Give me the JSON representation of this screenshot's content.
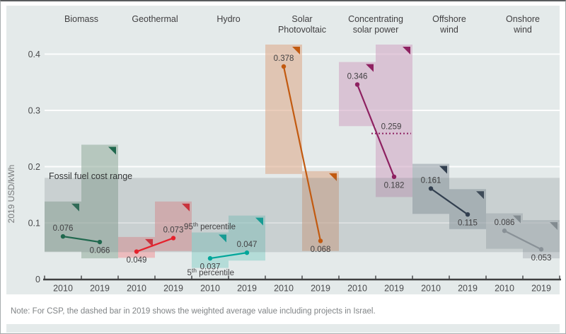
{
  "figure": {
    "y_axis_label": "2019 USD/kWh",
    "fossil_band_label": "Fossil fuel cost range",
    "p95": {
      "base": "95",
      "sup": "th",
      "rest": " percentile"
    },
    "p5": {
      "base": "5",
      "sup": "th",
      "rest": " percentile"
    },
    "note": "Note: For CSP, the dashed bar in 2019 shows the weighted average value including projects in Israel."
  },
  "chart_data": {
    "type": "range-bar",
    "title": "",
    "ylabel": "2019 USD/kWh",
    "unit": "2019 USD/kWh",
    "years": [
      "2010",
      "2019"
    ],
    "y_ticks": [
      "0",
      "0.1",
      "0.2",
      "0.3",
      "0.4"
    ],
    "ylim": [
      0,
      0.44
    ],
    "grid": true,
    "legend_position": "none",
    "range_meaning": "5th to 95th percentile",
    "fossil_fuel_cost_range": {
      "low": 0.048,
      "high": 0.18,
      "label": "Fossil fuel cost range"
    },
    "csp_dashed": {
      "value": 0.259,
      "label": "0.259"
    },
    "technologies": [
      {
        "name": "Biomass",
        "header_lines": [
          "Biomass"
        ],
        "bar_color": "#94ae9f",
        "accent_color": "#20684e",
        "avg": {
          "2010": 0.076,
          "2019": 0.066
        },
        "range": {
          "2010": [
            0.049,
            0.138
          ],
          "2019": [
            0.037,
            0.239
          ]
        },
        "label_side": {
          "2010": "above",
          "2019": "below"
        }
      },
      {
        "name": "Geothermal",
        "header_lines": [
          "Geothermal"
        ],
        "bar_color": "#f0999c",
        "accent_color": "#e5212c",
        "avg": {
          "2010": 0.049,
          "2019": 0.073
        },
        "range": {
          "2010": [
            0.038,
            0.075
          ],
          "2019": [
            0.05,
            0.138
          ]
        },
        "label_side": {
          "2010": "below",
          "2019": "above"
        }
      },
      {
        "name": "Hydro",
        "header_lines": [
          "Hydro"
        ],
        "bar_color": "#91d3cc",
        "accent_color": "#00a69a",
        "avg": {
          "2010": 0.037,
          "2019": 0.047
        },
        "range": {
          "2010": [
            0.02,
            0.083
          ],
          "2019": [
            0.033,
            0.113
          ]
        },
        "label_side": {
          "2010": "below",
          "2019": "above"
        }
      },
      {
        "name": "Solar Photovoltaic",
        "header_lines": [
          "Solar",
          "Photovoltaic"
        ],
        "bar_color": "#ddab8b",
        "accent_color": "#c25a10",
        "avg": {
          "2010": 0.378,
          "2019": 0.068
        },
        "range": {
          "2010": [
            0.187,
            0.417
          ],
          "2019": [
            0.05,
            0.192
          ]
        },
        "label_side": {
          "2010": "above",
          "2019": "below"
        }
      },
      {
        "name": "Concentrating solar power",
        "header_lines": [
          "Concentrating",
          "solar power"
        ],
        "bar_color": "#d0a7c4",
        "accent_color": "#8e2161",
        "avg": {
          "2010": 0.346,
          "2019": 0.182
        },
        "range": {
          "2010": [
            0.272,
            0.386
          ],
          "2019": [
            0.146,
            0.417
          ]
        },
        "label_side": {
          "2010": "above",
          "2019": "below"
        },
        "dashed_average_2019_incl_israel": 0.259
      },
      {
        "name": "Offshore wind",
        "header_lines": [
          "Offshore",
          "wind"
        ],
        "bar_color": "#97a2aa",
        "accent_color": "#323f4f",
        "avg": {
          "2010": 0.161,
          "2019": 0.115
        },
        "range": {
          "2010": [
            0.116,
            0.205
          ],
          "2019": [
            0.089,
            0.16
          ]
        },
        "label_side": {
          "2010": "above",
          "2019": "below"
        }
      },
      {
        "name": "Onshore wind",
        "header_lines": [
          "Onshore",
          "wind"
        ],
        "bar_color": "#b1b9be",
        "accent_color": "#899197",
        "avg": {
          "2010": 0.086,
          "2019": 0.053
        },
        "range": {
          "2010": [
            0.054,
            0.117
          ],
          "2019": [
            0.037,
            0.105
          ]
        },
        "label_side": {
          "2010": "above",
          "2019": "below"
        }
      }
    ]
  }
}
